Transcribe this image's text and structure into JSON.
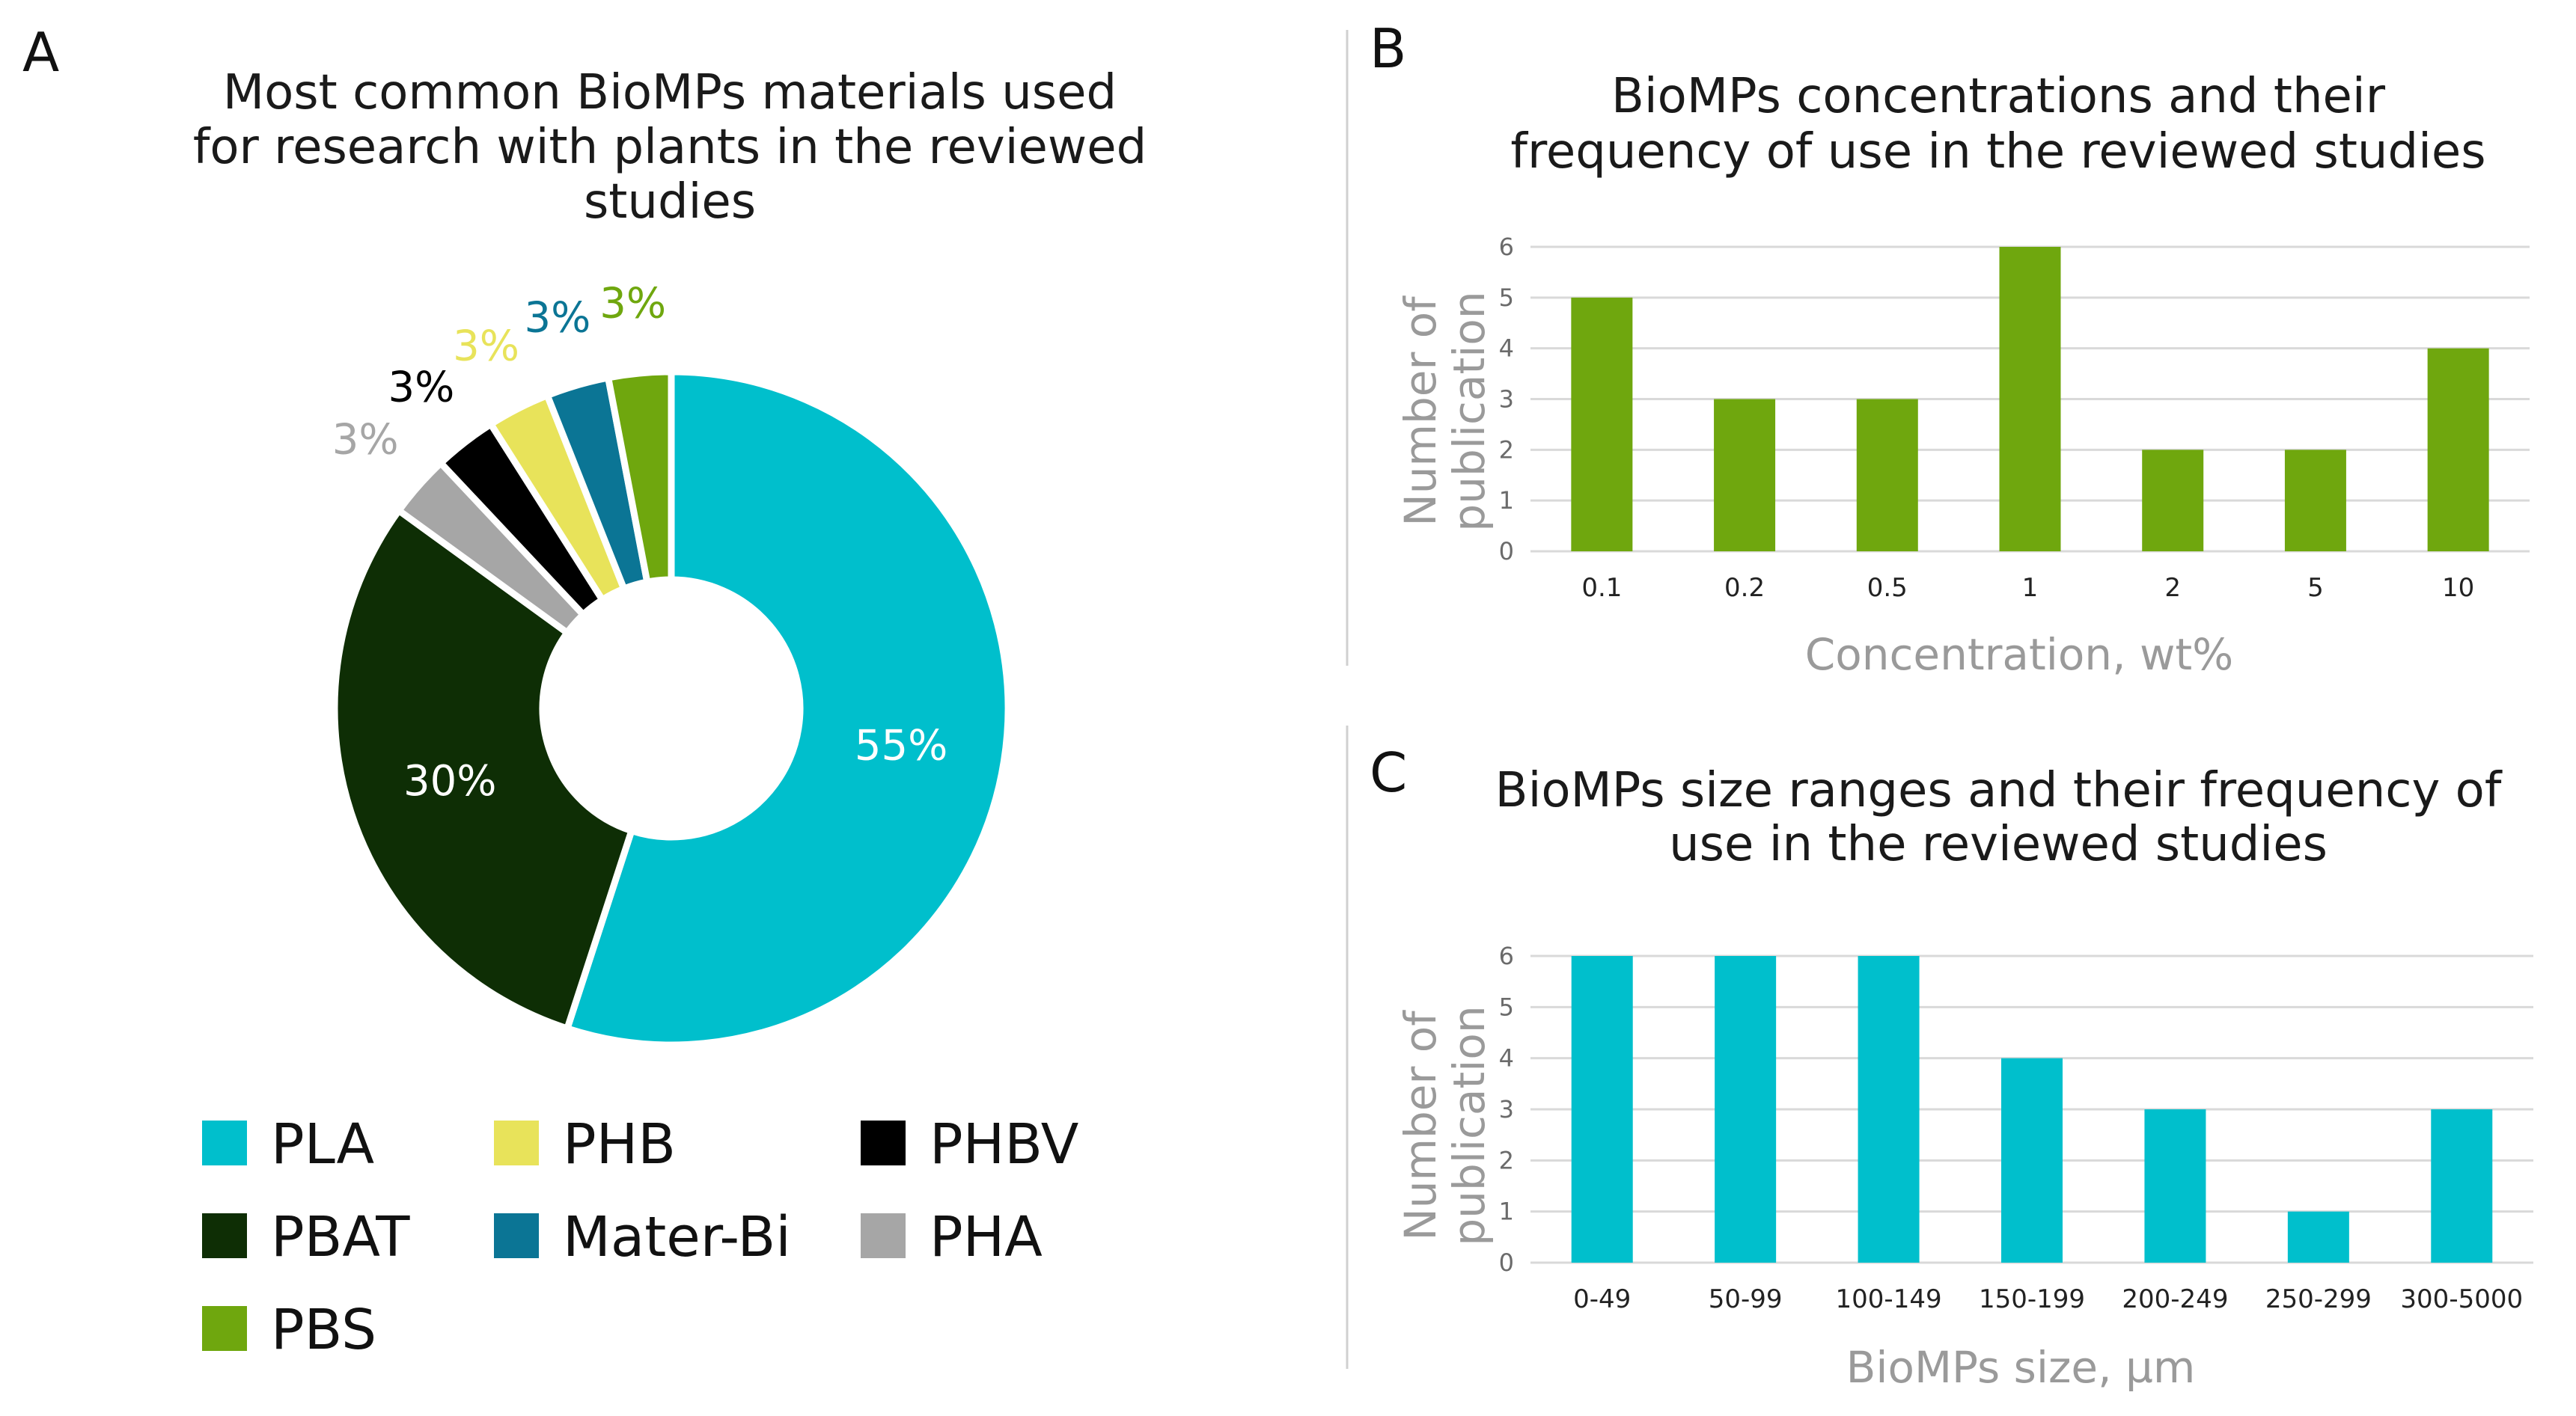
{
  "chart_data": [
    {
      "panel": "A",
      "type": "pie",
      "title_lines": [
        "Most common BioMPs materials used",
        "for research with plants in the reviewed",
        "studies"
      ],
      "slices": [
        {
          "name": "PLA",
          "value": 55,
          "label": "55%",
          "color": "#00BFCC",
          "label_color": "#ffffff"
        },
        {
          "name": "PBAT",
          "value": 30,
          "label": "30%",
          "color": "#0E2E05",
          "label_color": "#ffffff"
        },
        {
          "name": "PHA",
          "value": 3,
          "label": "3%",
          "color": "#A6A6A6",
          "label_color": "#A6A6A6"
        },
        {
          "name": "PHBV",
          "value": 3,
          "label": "3%",
          "color": "#000000",
          "label_color": "#000000"
        },
        {
          "name": "PHB",
          "value": 3,
          "label": "3%",
          "color": "#E8E35A",
          "label_color": "#E8E35A"
        },
        {
          "name": "Mater-Bi",
          "value": 3,
          "label": "3%",
          "color": "#0B7595",
          "label_color": "#0B7595"
        },
        {
          "name": "PBS",
          "value": 3,
          "label": "3%",
          "color": "#6FA70E",
          "label_color": "#6FA70E"
        }
      ],
      "legend": [
        "PLA",
        "PHB",
        "PHBV",
        "PBAT",
        "Mater-Bi",
        "PHA",
        "PBS"
      ]
    },
    {
      "panel": "B",
      "type": "bar",
      "title_lines": [
        "BioMPs concentrations and their",
        "frequency of use in the reviewed studies"
      ],
      "categories": [
        "0.1",
        "0.2",
        "0.5",
        "1",
        "2",
        "5",
        "10"
      ],
      "values": [
        5,
        3,
        3,
        6,
        2,
        2,
        4
      ],
      "xlabel": "Concentration, wt%",
      "ylabel_lines": [
        "Number of",
        "publication"
      ],
      "ylim": [
        0,
        6
      ],
      "yticks": [
        "0",
        "1",
        "2",
        "3",
        "4",
        "5",
        "6"
      ],
      "color": "#6FA70E"
    },
    {
      "panel": "C",
      "type": "bar",
      "title_lines": [
        "BioMPs size ranges and their frequency of",
        "use in the reviewed studies"
      ],
      "categories": [
        "0-49",
        "50-99",
        "100-149",
        "150-199",
        "200-249",
        "250-299",
        "300-5000"
      ],
      "values": [
        6,
        6,
        6,
        4,
        3,
        1,
        3
      ],
      "xlabel": "BioMPs size, µm",
      "ylabel_lines": [
        "Number of",
        "publication"
      ],
      "ylim": [
        0,
        6
      ],
      "yticks": [
        "0",
        "1",
        "2",
        "3",
        "4",
        "5",
        "6"
      ],
      "color": "#00BFCC"
    }
  ]
}
